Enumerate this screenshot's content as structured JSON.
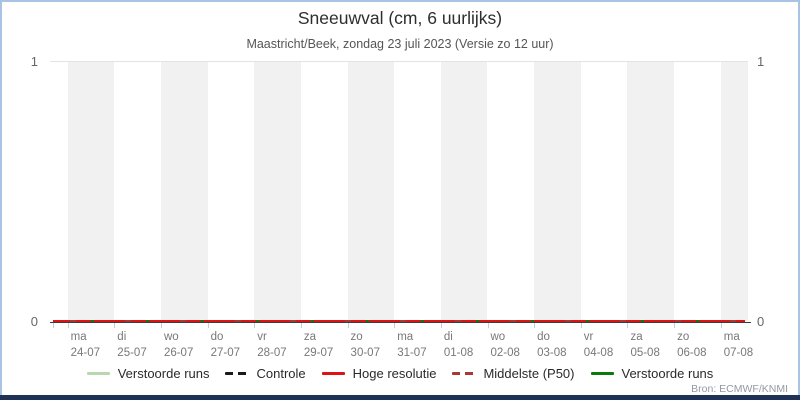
{
  "title": "Sneeuwval (cm, 6 uurlijks)",
  "subtitle": "Maastricht/Beek, zondag 23 juli 2023 (Versie zo 12 uur)",
  "source": "Bron: ECMWF/KNMI",
  "y_axis": {
    "top_left": "1",
    "bottom_left": "0",
    "top_right": "1",
    "bottom_right": "0"
  },
  "x_axis": {
    "days": [
      {
        "weekday": "ma",
        "date": "24-07"
      },
      {
        "weekday": "di",
        "date": "25-07"
      },
      {
        "weekday": "wo",
        "date": "26-07"
      },
      {
        "weekday": "do",
        "date": "27-07"
      },
      {
        "weekday": "vr",
        "date": "28-07"
      },
      {
        "weekday": "za",
        "date": "29-07"
      },
      {
        "weekday": "zo",
        "date": "30-07"
      },
      {
        "weekday": "ma",
        "date": "31-07"
      },
      {
        "weekday": "di",
        "date": "01-08"
      },
      {
        "weekday": "wo",
        "date": "02-08"
      },
      {
        "weekday": "do",
        "date": "03-08"
      },
      {
        "weekday": "vr",
        "date": "04-08"
      },
      {
        "weekday": "za",
        "date": "05-08"
      },
      {
        "weekday": "zo",
        "date": "06-08"
      },
      {
        "weekday": "ma",
        "date": "07-08"
      }
    ]
  },
  "legend": [
    {
      "label": "Verstoorde runs",
      "color": "#b7d8af",
      "style": "solid"
    },
    {
      "label": "Controle",
      "color": "#1a1a1a",
      "style": "dashed"
    },
    {
      "label": "Hoge resolutie",
      "color": "#dc1414",
      "style": "solid"
    },
    {
      "label": "Middelste (P50)",
      "color": "#a83838",
      "style": "dashed"
    },
    {
      "label": "Verstoorde runs",
      "color": "#0b7a0b",
      "style": "solid"
    }
  ],
  "colors": {
    "band": "#f1f1f1",
    "gridline": "#e3e3e3",
    "axis_line": "#3b3b3b",
    "tick": "#c3cede",
    "frame_border": "#a7c4e4",
    "bottom_bar": "#1e3156"
  },
  "chart_data": {
    "type": "line",
    "title": "Sneeuwval (cm, 6 uurlijks)",
    "subtitle": "Maastricht/Beek, zondag 23 juli 2023 (Versie zo 12 uur)",
    "xlabel": "",
    "ylabel": "",
    "ylim": [
      0,
      1
    ],
    "y_ticks": [
      0,
      1
    ],
    "grid": "top boundary line only; alternating grey/white day bands",
    "legend_position": "bottom",
    "categories": [
      "ma 24-07",
      "di 25-07",
      "wo 26-07",
      "do 27-07",
      "vr 28-07",
      "za 29-07",
      "zo 30-07",
      "ma 31-07",
      "di 01-08",
      "wo 02-08",
      "do 03-08",
      "vr 04-08",
      "za 05-08",
      "zo 06-08",
      "ma 07-08"
    ],
    "series": [
      {
        "name": "Verstoorde runs",
        "values": [
          0,
          0,
          0,
          0,
          0,
          0,
          0,
          0,
          0,
          0,
          0,
          0,
          0,
          0,
          0
        ]
      },
      {
        "name": "Controle",
        "values": [
          0,
          0,
          0,
          0,
          0,
          0,
          0,
          0,
          0,
          0,
          0,
          0,
          0,
          0,
          0
        ]
      },
      {
        "name": "Hoge resolutie",
        "values": [
          0,
          0,
          0,
          0,
          0,
          0,
          0,
          0,
          0,
          0,
          0,
          0,
          0,
          0,
          0
        ]
      },
      {
        "name": "Middelste (P50)",
        "values": [
          0,
          0,
          0,
          0,
          0,
          0,
          0,
          0,
          0,
          0,
          0,
          0,
          0,
          0,
          0
        ]
      },
      {
        "name": "Verstoorde runs",
        "values": [
          0,
          0,
          0,
          0,
          0,
          0,
          0,
          0,
          0,
          0,
          0,
          0,
          0,
          0,
          0
        ]
      }
    ]
  }
}
